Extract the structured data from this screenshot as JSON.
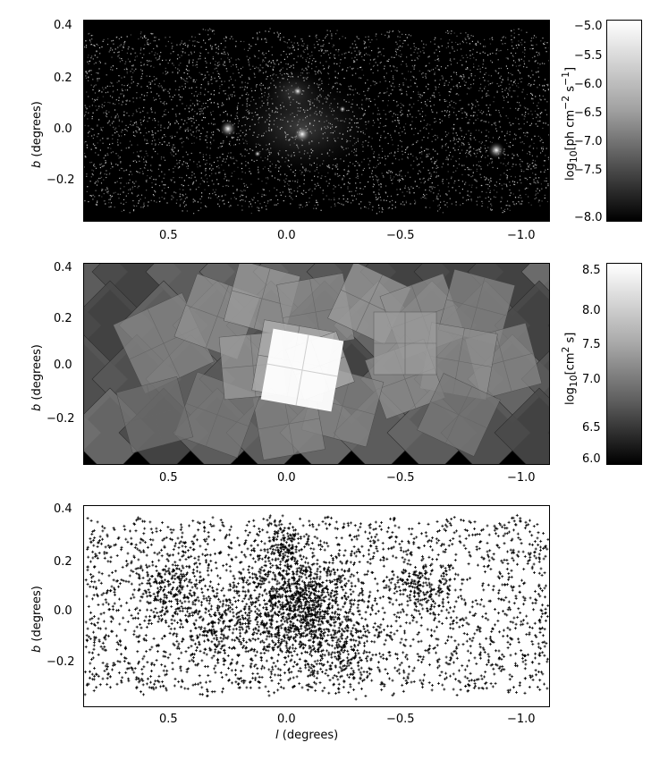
{
  "panels": [
    {
      "ylabel_var": "b",
      "ylabel_unit": " (degrees)",
      "xticks": [
        "0.5",
        "0.0",
        "−0.5",
        "−1.0"
      ],
      "yticks": [
        "0.4",
        "0.2",
        "0.0",
        "−0.2"
      ],
      "colorbar": {
        "ticks": [
          "−5.0",
          "−5.5",
          "−6.0",
          "−6.5",
          "−7.0",
          "−7.5",
          "−8.0"
        ],
        "label_prefix": "log",
        "label_sub": "10",
        "label_body": "[ph cm",
        "label_sup1": "−2",
        "label_mid": " s",
        "label_sup2": "−1",
        "label_end": "]"
      }
    },
    {
      "ylabel_var": "b",
      "ylabel_unit": " (degrees)",
      "xticks": [
        "0.5",
        "0.0",
        "−0.5",
        "−1.0"
      ],
      "yticks": [
        "0.4",
        "0.2",
        "0.0",
        "−0.2"
      ],
      "colorbar": {
        "ticks": [
          "8.5",
          "8.0",
          "7.5",
          "7.0",
          "6.5",
          "6.0"
        ],
        "label_prefix": "log",
        "label_sub": "10",
        "label_body": "[cm",
        "label_sup1": "2",
        "label_mid": " s",
        "label_sup2": "",
        "label_end": "]"
      }
    },
    {
      "ylabel_var": "b",
      "ylabel_unit": " (degrees)",
      "xlabel_var": "l",
      "xlabel_unit": " (degrees)",
      "xticks": [
        "0.5",
        "0.0",
        "−0.5",
        "−1.0"
      ],
      "yticks": [
        "0.4",
        "0.2",
        "0.0",
        "−0.2"
      ]
    }
  ]
}
